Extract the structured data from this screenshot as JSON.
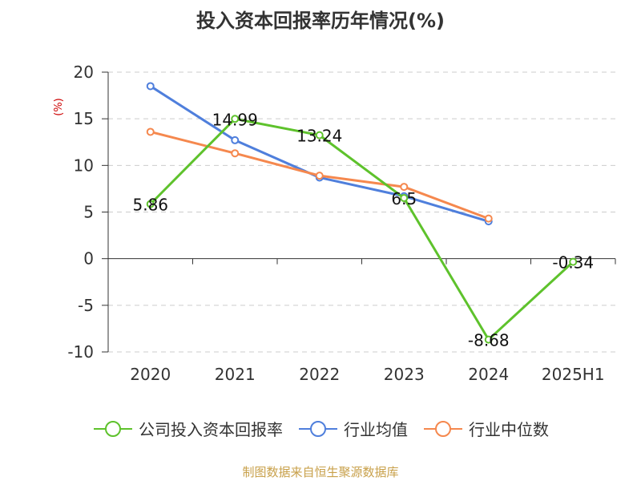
{
  "title": "投入资本回报率历年情况(%)",
  "footer": "制图数据来自恒生聚源数据库",
  "colors": {
    "company": "#5ec22c",
    "industry_avg": "#4f7fdc",
    "industry_median": "#f5884e",
    "grid": "#cccccc",
    "axis": "#333333",
    "ylabel": "#cc0000"
  },
  "chart_data": {
    "type": "line",
    "title": "投入资本回报率历年情况(%)",
    "ylabel": "(%)",
    "xlabel": "",
    "categories": [
      "2020",
      "2021",
      "2022",
      "2023",
      "2024",
      "2025H1"
    ],
    "ylim": [
      -10,
      20
    ],
    "yticks": [
      20,
      15,
      10,
      5,
      0,
      -5,
      -10
    ],
    "grid": true,
    "legend_position": "bottom",
    "series": [
      {
        "name": "公司投入资本回报率",
        "key": "company",
        "values": [
          5.86,
          14.99,
          13.24,
          6.5,
          -8.68,
          -0.34
        ],
        "labels": [
          "5.86",
          "14.99",
          "13.24",
          "6.5",
          "-8.68",
          "-0.34"
        ]
      },
      {
        "name": "行业均值",
        "key": "industry_avg",
        "values": [
          18.5,
          12.7,
          8.7,
          6.7,
          4.0,
          null
        ]
      },
      {
        "name": "行业中位数",
        "key": "industry_median",
        "values": [
          13.6,
          11.3,
          8.9,
          7.7,
          4.3,
          null
        ]
      }
    ]
  }
}
